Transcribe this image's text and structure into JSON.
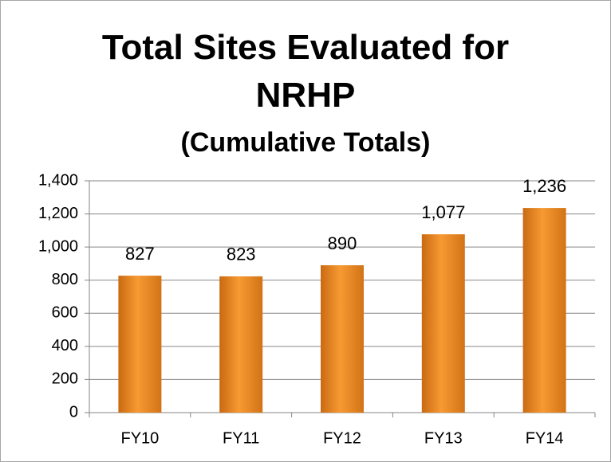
{
  "chart_data": {
    "type": "bar",
    "title": "Total Sites Evaluated for NRHP",
    "subtitle": "(Cumulative Totals)",
    "categories": [
      "FY10",
      "FY11",
      "FY12",
      "FY13",
      "FY14"
    ],
    "values": [
      827,
      823,
      890,
      1077,
      1236
    ],
    "value_labels": [
      "827",
      "823",
      "890",
      "1,077",
      "1,236"
    ],
    "color": "#f79a32",
    "ylim": [
      0,
      1400
    ],
    "yticks": [
      0,
      200,
      400,
      600,
      800,
      {
        "value": 1000,
        "label": "1,000"
      },
      {
        "value": 1200,
        "label": "1,200"
      },
      {
        "value": 1400,
        "label": "1,400"
      }
    ],
    "grid": true
  }
}
